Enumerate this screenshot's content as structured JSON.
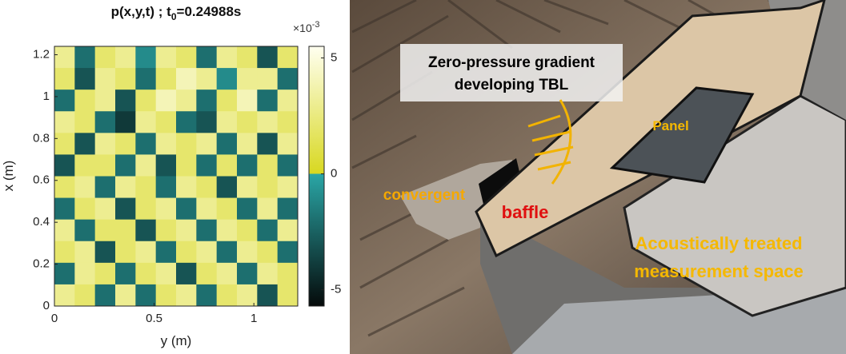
{
  "chart_data": {
    "type": "heatmap",
    "title": {
      "main": "p(x,y,t) ; t",
      "sub": "0",
      "rest": "=0.24988s"
    },
    "x_label": "y (m)",
    "y_label": "x (m)",
    "xlim": [
      0,
      1.22
    ],
    "ylim": [
      0,
      1.24
    ],
    "xticks": [
      0,
      0.5,
      1
    ],
    "yticks": [
      0,
      0.2,
      0.4,
      0.6,
      0.8,
      1,
      1.2
    ],
    "colorbar": {
      "multiplier": {
        "base": "×10",
        "exponent": "-3"
      },
      "zlim": [
        -5.7,
        5.5
      ],
      "ticks": [
        -5,
        0,
        5
      ],
      "negative_colors": [
        "#050a0a",
        "#2aa6a6"
      ],
      "positive_colors": [
        "#d8d820",
        "#fffff0"
      ]
    },
    "z": [
      [
        3,
        -2,
        2,
        3,
        -1,
        3,
        2,
        -2,
        3,
        2,
        -3,
        2
      ],
      [
        2,
        -3,
        3,
        2,
        -2,
        2,
        4,
        3,
        -1,
        3,
        3,
        -2
      ],
      [
        -2,
        2,
        3,
        -3,
        2,
        4,
        3,
        -2,
        2,
        4,
        -2,
        3
      ],
      [
        3,
        2,
        -2,
        -4,
        3,
        2,
        -2,
        -3,
        3,
        2,
        3,
        2
      ],
      [
        2,
        -3,
        3,
        2,
        -2,
        3,
        2,
        3,
        -2,
        3,
        -3,
        3
      ],
      [
        -3,
        2,
        2,
        -2,
        3,
        -3,
        2,
        -2,
        2,
        -2,
        2,
        -2
      ],
      [
        2,
        3,
        -2,
        3,
        2,
        -2,
        3,
        2,
        -3,
        3,
        2,
        3
      ],
      [
        -2,
        2,
        3,
        -3,
        2,
        3,
        -2,
        3,
        2,
        -2,
        3,
        -2
      ],
      [
        3,
        -2,
        2,
        2,
        -3,
        2,
        3,
        -2,
        3,
        2,
        -2,
        3
      ],
      [
        2,
        3,
        -3,
        2,
        3,
        -2,
        2,
        3,
        -2,
        3,
        2,
        -2
      ],
      [
        -2,
        3,
        2,
        -2,
        2,
        3,
        -3,
        2,
        3,
        -2,
        3,
        2
      ],
      [
        3,
        2,
        -2,
        3,
        -2,
        2,
        3,
        -2,
        2,
        3,
        -3,
        2
      ]
    ]
  },
  "photo": {
    "tbl_label": [
      "Zero-pressure gradient",
      "developing TBL"
    ],
    "panel_label": "Panel",
    "convergent_label": "convergent",
    "baffle_label": "baffle",
    "space_label": [
      "Acoustically treated",
      "measurement space"
    ]
  }
}
